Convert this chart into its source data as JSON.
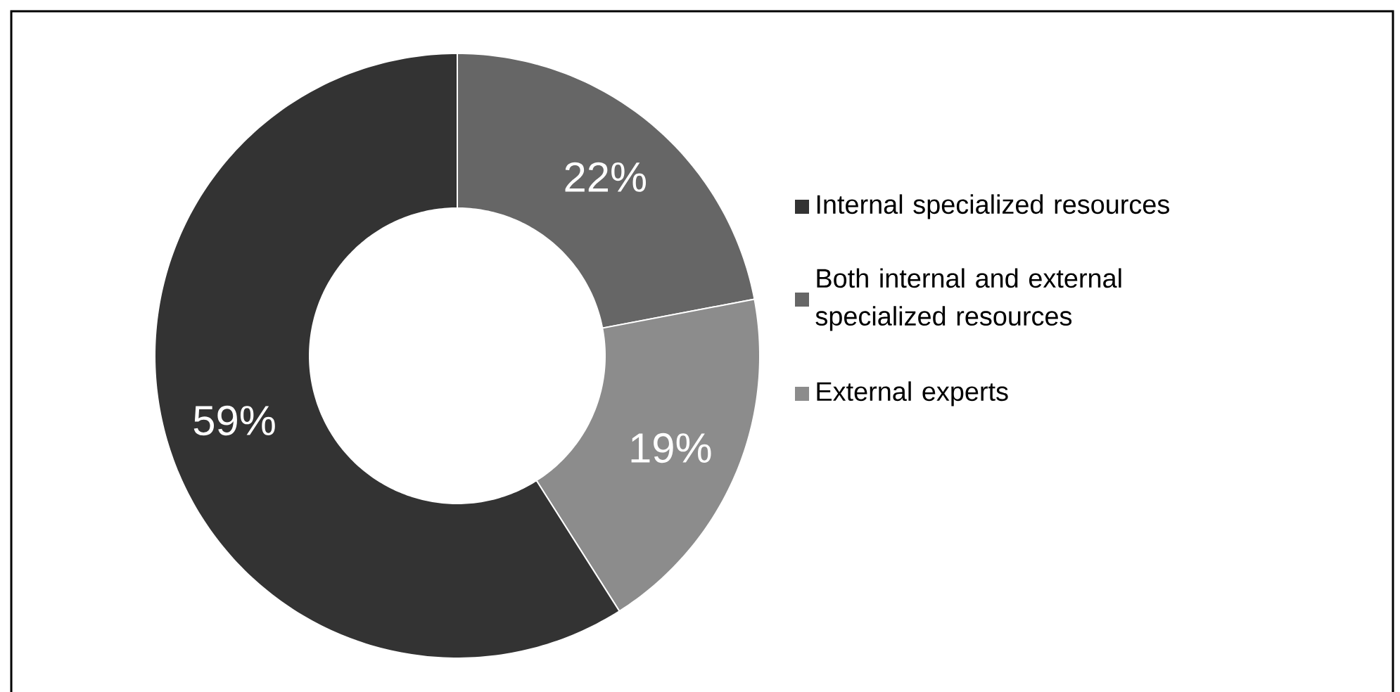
{
  "chart_data": {
    "type": "donut",
    "categories": [
      "Internal specialized resources",
      "Both internal and external specialized resources",
      "External experts"
    ],
    "values": [
      59,
      22,
      19
    ],
    "colors": [
      "#333333",
      "#666666",
      "#8c8c8c"
    ],
    "value_labels": [
      "59%",
      "22%",
      "19%"
    ],
    "legend": "right"
  }
}
